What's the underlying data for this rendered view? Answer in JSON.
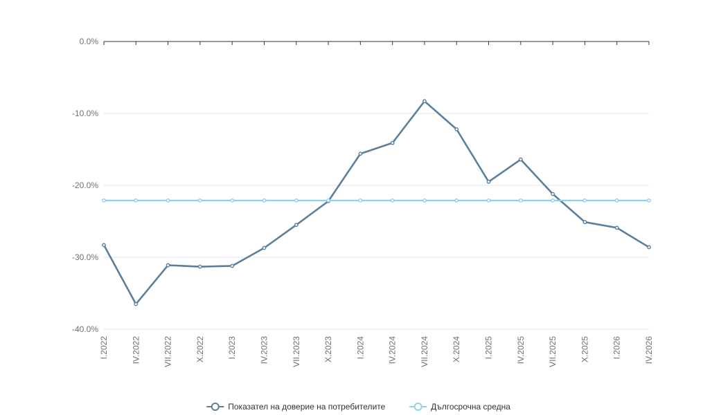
{
  "colors": {
    "series_main": "#5b7f9b",
    "series_avg": "#8fd0ef",
    "grid": "#e0e6f1",
    "axis": "#333333",
    "label": "#6e7079"
  },
  "chart_data": {
    "type": "line",
    "title": "",
    "xlabel": "",
    "ylabel": "",
    "categories": [
      "I.2022",
      "IV.2022",
      "VII.2022",
      "X.2022",
      "I.2023",
      "IV.2023",
      "VII.2023",
      "X.2023",
      "I.2024",
      "IV.2024",
      "VII.2024",
      "X.2024",
      "I.2025",
      "IV.2025",
      "VII.2025",
      "X.2025",
      "I.2026",
      "IV.2026"
    ],
    "y_ticks": [
      "0.0%",
      "-10.0%",
      "-20.0%",
      "-30.0%",
      "-40.0%"
    ],
    "y_tick_values": [
      0,
      -10,
      -20,
      -30,
      -40
    ],
    "ylim": [
      -40,
      0
    ],
    "grid": true,
    "legend_position": "bottom-center",
    "series": [
      {
        "name": "Показател на доверие на потребителите",
        "color": "#5b7f9b",
        "values": [
          -28.3,
          -36.5,
          -31.1,
          -31.3,
          -31.2,
          -28.7,
          -25.5,
          -22.2,
          -15.6,
          -14.1,
          -8.3,
          -12.2,
          -19.5,
          -16.4,
          -21.2,
          -25.1,
          -25.9,
          -28.6
        ]
      },
      {
        "name": "Дългосрочна средна",
        "color": "#8fd0ef",
        "values": [
          -22.1,
          -22.1,
          -22.1,
          -22.1,
          -22.1,
          -22.1,
          -22.1,
          -22.1,
          -22.1,
          -22.1,
          -22.1,
          -22.1,
          -22.1,
          -22.1,
          -22.1,
          -22.1,
          -22.1,
          -22.1
        ]
      }
    ]
  }
}
